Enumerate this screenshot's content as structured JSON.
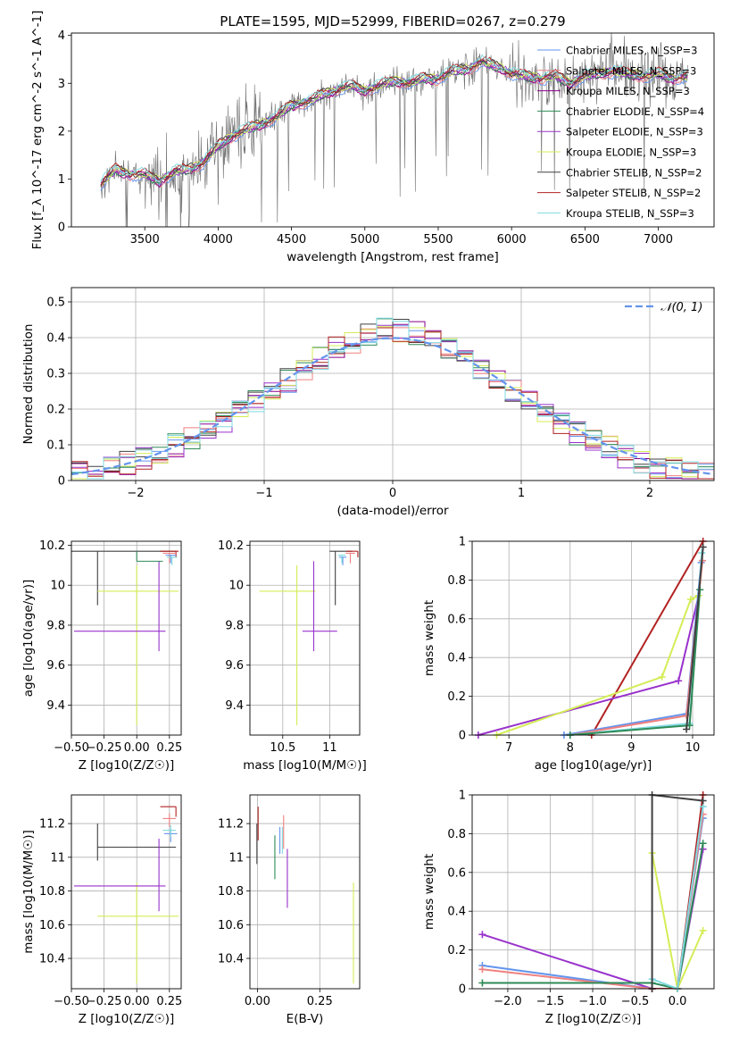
{
  "title": "PLATE=1595, MJD=52999, FIBERID=0267, z=0.279",
  "colors": {
    "chabrier_miles": "#6495ed",
    "salpeter_miles": "#f08080",
    "kroupa_miles": "#8b008b",
    "chabrier_elodie": "#2e8b57",
    "salpeter_elodie": "#9932cc",
    "kroupa_elodie": "#d4ed57",
    "chabrier_stelib": "#404040",
    "salpeter_stelib": "#b22222",
    "kroupa_stelib": "#7fd9e0",
    "data": "#6e6e6e",
    "gaussian": "#6495ed",
    "grid": "#b0b0b0"
  },
  "chart_data": [
    {
      "id": "spectrum",
      "type": "line",
      "title": "PLATE=1595, MJD=52999, FIBERID=0267, z=0.279",
      "xlabel": "wavelength [Angstrom, rest frame]",
      "ylabel": "Flux [f_λ 10^-17 erg cm^-2 s^-1 A^-1]",
      "xlim": [
        3000,
        7380
      ],
      "ylim": [
        0,
        4.05
      ],
      "xticks": [
        3500,
        4000,
        4500,
        5000,
        5500,
        6000,
        6500,
        7000
      ],
      "yticks": [
        0,
        1,
        2,
        3,
        4
      ],
      "grid": false,
      "legend_position": "upper-right",
      "legend": [
        "Chabrier MILES, N_SSP=3",
        "Salpeter MILES, N_SSP=3",
        "Kroupa MILES, N_SSP=3",
        "Chabrier ELODIE, N_SSP=4",
        "Salpeter ELODIE, N_SSP=3",
        "Kroupa ELODIE, N_SSP=3",
        "Chabrier STELIB, N_SSP=2",
        "Salpeter STELIB, N_SSP=2",
        "Kroupa STELIB, N_SSP=3"
      ],
      "continuum_x": [
        3200,
        3300,
        3400,
        3500,
        3600,
        3700,
        3800,
        3900,
        4000,
        4100,
        4200,
        4300,
        4400,
        4500,
        4600,
        4700,
        4800,
        4900,
        5000,
        5100,
        5200,
        5300,
        5400,
        5500,
        5600,
        5700,
        5800,
        5900,
        6000,
        6100,
        6200,
        6300,
        6400,
        6500,
        6600,
        6700,
        6800,
        6900,
        7000,
        7100,
        7200
      ],
      "continuum_y": [
        0.9,
        1.2,
        1.1,
        1.1,
        0.95,
        1.15,
        1.2,
        1.35,
        1.7,
        1.9,
        2.05,
        2.15,
        2.3,
        2.55,
        2.6,
        2.75,
        2.85,
        2.95,
        2.85,
        2.95,
        3.05,
        3.0,
        3.1,
        3.1,
        3.25,
        3.3,
        3.45,
        3.35,
        3.2,
        3.15,
        3.1,
        3.15,
        3.0,
        3.15,
        3.2,
        3.25,
        3.2,
        3.15,
        3.2,
        3.1,
        3.15
      ]
    },
    {
      "id": "residuals",
      "type": "line",
      "xlabel": "(data-model)/error",
      "ylabel": "Normed distribution",
      "xlim": [
        -2.5,
        2.5
      ],
      "ylim": [
        0,
        0.54
      ],
      "xticks": [
        -2,
        -1,
        0,
        1,
        2
      ],
      "yticks": [
        0.0,
        0.1,
        0.2,
        0.3,
        0.4,
        0.5
      ],
      "grid": true,
      "legend_position": "upper-right",
      "legend": [
        "𝒩(0, 1)"
      ],
      "hist_y": [
        0.02,
        0.03,
        0.04,
        0.05,
        0.06,
        0.08,
        0.1,
        0.12,
        0.14,
        0.16,
        0.19,
        0.22,
        0.25,
        0.28,
        0.31,
        0.34,
        0.37,
        0.39,
        0.41,
        0.42,
        0.42,
        0.41,
        0.39,
        0.37,
        0.34,
        0.31,
        0.28,
        0.25,
        0.22,
        0.19,
        0.16,
        0.13,
        0.11,
        0.09,
        0.07,
        0.05,
        0.04,
        0.03,
        0.03,
        0.02
      ]
    },
    {
      "id": "age-vs-z",
      "type": "scatter",
      "xlabel": "Z [log10(Z/Z☉)]",
      "ylabel": "age [log10(age/yr)]",
      "xlim": [
        -0.5,
        0.34
      ],
      "ylim": [
        9.25,
        10.22
      ],
      "xticks": [
        -0.5,
        -0.25,
        0.0,
        0.25
      ],
      "xtick_labels": [
        "−0.50",
        "−0.25",
        "0.00",
        "0.25"
      ],
      "yticks": [
        9.4,
        9.6,
        9.8,
        10.0,
        10.2
      ],
      "grid": true,
      "points": [
        {
          "series": "chabrier_stelib",
          "x": -0.3,
          "y": 10.17,
          "xerr": [
            0.3,
            0.6
          ],
          "yerr": [
            0.27,
            0.0
          ]
        },
        {
          "series": "kroupa_elodie",
          "x": 0.0,
          "y": 9.97,
          "xerr": [
            0.3,
            0.32
          ],
          "yerr": [
            0.67,
            0.13
          ]
        },
        {
          "series": "salpeter_elodie",
          "x": 0.17,
          "y": 9.77,
          "xerr": [
            0.65,
            0.05
          ],
          "yerr": [
            0.1,
            0.35
          ]
        },
        {
          "series": "chabrier_elodie",
          "x": 0.0,
          "y": 10.12,
          "xerr": [
            0.0,
            0.2
          ],
          "yerr": [
            0.0,
            0.05
          ]
        },
        {
          "series": "salpeter_stelib",
          "x": 0.3,
          "y": 10.17,
          "xerr": [
            0.12,
            0.02
          ],
          "yerr": [
            0.03,
            0.0
          ]
        },
        {
          "series": "salpeter_miles",
          "x": 0.25,
          "y": 10.16,
          "xerr": [
            0.05,
            0.05
          ],
          "yerr": [
            0.05,
            0.0
          ]
        },
        {
          "series": "chabrier_miles",
          "x": 0.26,
          "y": 10.15,
          "xerr": [
            0.04,
            0.04
          ],
          "yerr": [
            0.04,
            0.0
          ]
        },
        {
          "series": "kroupa_stelib",
          "x": 0.27,
          "y": 10.14,
          "xerr": [
            0.04,
            0.04
          ],
          "yerr": [
            0.04,
            0.0
          ]
        }
      ]
    },
    {
      "id": "age-vs-mass",
      "type": "scatter",
      "xlabel": "mass [log10(M/M☉)]",
      "xlim": [
        10.15,
        11.32
      ],
      "ylim": [
        9.25,
        10.22
      ],
      "xticks": [
        10.5,
        11.0
      ],
      "yticks": [
        9.4,
        9.6,
        9.8,
        10.0,
        10.2
      ],
      "grid": true,
      "points": [
        {
          "series": "chabrier_stelib",
          "x": 11.06,
          "y": 10.17,
          "xerr": [
            0.06,
            0.18
          ],
          "yerr": [
            0.27,
            0.0
          ]
        },
        {
          "series": "kroupa_elodie",
          "x": 10.65,
          "y": 9.97,
          "xerr": [
            0.4,
            0.2
          ],
          "yerr": [
            0.67,
            0.13
          ]
        },
        {
          "series": "salpeter_elodie",
          "x": 10.83,
          "y": 9.77,
          "xerr": [
            0.12,
            0.25
          ],
          "yerr": [
            0.1,
            0.35
          ]
        },
        {
          "series": "salpeter_stelib",
          "x": 11.3,
          "y": 10.17,
          "xerr": [
            0.12,
            0.0
          ],
          "yerr": [
            0.03,
            0.0
          ]
        },
        {
          "series": "salpeter_miles",
          "x": 11.22,
          "y": 10.16,
          "xerr": [
            0.05,
            0.05
          ],
          "yerr": [
            0.05,
            0.0
          ]
        },
        {
          "series": "chabrier_miles",
          "x": 11.14,
          "y": 10.14,
          "xerr": [
            0.04,
            0.04
          ],
          "yerr": [
            0.04,
            0.0
          ]
        },
        {
          "series": "kroupa_stelib",
          "x": 11.13,
          "y": 10.15,
          "xerr": [
            0.04,
            0.04
          ],
          "yerr": [
            0.04,
            0.0
          ]
        }
      ]
    },
    {
      "id": "weight-vs-age",
      "type": "line",
      "xlabel": "age [log10(age/yr)]",
      "ylabel": "mass weight",
      "xlim": [
        6.4,
        10.35
      ],
      "ylim": [
        0,
        1.0
      ],
      "xticks": [
        7,
        8,
        9,
        10
      ],
      "yticks": [
        0.0,
        0.2,
        0.4,
        0.6,
        0.8,
        1.0
      ],
      "grid": true,
      "series": [
        {
          "key": "salpeter_stelib",
          "x": [
            8.35,
            10.17
          ],
          "y": [
            0.0,
            1.0
          ]
        },
        {
          "key": "salpeter_elodie",
          "x": [
            6.5,
            9.77,
            10.1
          ],
          "y": [
            0.0,
            0.28,
            0.72
          ]
        },
        {
          "key": "kroupa_elodie",
          "x": [
            6.8,
            9.5,
            9.97,
            10.1
          ],
          "y": [
            0.0,
            0.3,
            0.7,
            0.72
          ]
        },
        {
          "key": "chabrier_miles",
          "x": [
            7.9,
            9.9,
            10.14
          ],
          "y": [
            0.0,
            0.11,
            0.89
          ]
        },
        {
          "key": "salpeter_miles",
          "x": [
            8.0,
            9.9,
            10.16
          ],
          "y": [
            0.0,
            0.1,
            0.9
          ]
        },
        {
          "key": "kroupa_stelib",
          "x": [
            8.0,
            9.95,
            10.15
          ],
          "y": [
            0.0,
            0.06,
            0.94
          ]
        },
        {
          "key": "chabrier_elodie",
          "x": [
            8.0,
            9.95,
            10.12
          ],
          "y": [
            0.0,
            0.05,
            0.75
          ]
        },
        {
          "key": "chabrier_stelib",
          "x": [
            9.9,
            10.17
          ],
          "y": [
            0.03,
            0.97
          ]
        }
      ]
    },
    {
      "id": "mass-vs-z",
      "type": "scatter",
      "xlabel": "Z [log10(Z/Z☉)]",
      "ylabel": "mass [log10(M/M☉)]",
      "xlim": [
        -0.5,
        0.34
      ],
      "ylim": [
        10.22,
        11.37
      ],
      "xticks": [
        -0.5,
        -0.25,
        0.0,
        0.25
      ],
      "xtick_labels": [
        "−0.50",
        "−0.25",
        "0.00",
        "0.25"
      ],
      "yticks": [
        10.4,
        10.6,
        10.8,
        11.0,
        11.2
      ],
      "grid": true,
      "points": [
        {
          "series": "chabrier_stelib",
          "x": -0.3,
          "y": 11.06,
          "xerr": [
            0.0,
            0.6
          ],
          "yerr": [
            0.08,
            0.14
          ]
        },
        {
          "series": "kroupa_elodie",
          "x": 0.0,
          "y": 10.65,
          "xerr": [
            0.3,
            0.32
          ],
          "yerr": [
            0.4,
            0.2
          ]
        },
        {
          "series": "salpeter_elodie",
          "x": 0.17,
          "y": 10.83,
          "xerr": [
            0.65,
            0.05
          ],
          "yerr": [
            0.15,
            0.28
          ]
        },
        {
          "series": "salpeter_stelib",
          "x": 0.3,
          "y": 11.3,
          "xerr": [
            0.12,
            0.0
          ],
          "yerr": [
            0.06,
            0.0
          ]
        },
        {
          "series": "salpeter_miles",
          "x": 0.25,
          "y": 11.23,
          "xerr": [
            0.05,
            0.05
          ],
          "yerr": [
            0.05,
            0.03
          ]
        },
        {
          "series": "chabrier_miles",
          "x": 0.26,
          "y": 11.14,
          "xerr": [
            0.05,
            0.05
          ],
          "yerr": [
            0.05,
            0.03
          ]
        },
        {
          "series": "kroupa_stelib",
          "x": 0.26,
          "y": 11.16,
          "xerr": [
            0.06,
            0.04
          ],
          "yerr": [
            0.04,
            0.03
          ]
        }
      ]
    },
    {
      "id": "mass-vs-ebv",
      "type": "scatter",
      "xlabel": "E(B-V)",
      "xlim": [
        -0.03,
        0.41
      ],
      "ylim": [
        10.22,
        11.37
      ],
      "xticks": [
        0.0,
        0.25
      ],
      "xtick_labels": [
        "0.00",
        "0.25"
      ],
      "yticks": [
        10.4,
        10.6,
        10.8,
        11.0,
        11.2
      ],
      "grid": true,
      "points": [
        {
          "series": "chabrier_stelib",
          "x": -0.002,
          "y": 11.1,
          "xerr": [
            0,
            0
          ],
          "yerr": [
            0.14,
            0.1
          ]
        },
        {
          "series": "salpeter_stelib",
          "x": 0.003,
          "y": 11.2,
          "xerr": [
            0,
            0
          ],
          "yerr": [
            0.1,
            0.1
          ]
        },
        {
          "series": "chabrier_elodie",
          "x": 0.07,
          "y": 11.0,
          "xerr": [
            0,
            0
          ],
          "yerr": [
            0.13,
            0.13
          ]
        },
        {
          "series": "chabrier_miles",
          "x": 0.09,
          "y": 11.1,
          "xerr": [
            0,
            0
          ],
          "yerr": [
            0.08,
            0.08
          ]
        },
        {
          "series": "kroupa_stelib",
          "x": 0.1,
          "y": 11.1,
          "xerr": [
            0,
            0
          ],
          "yerr": [
            0.08,
            0.08
          ]
        },
        {
          "series": "salpeter_miles",
          "x": 0.105,
          "y": 11.15,
          "xerr": [
            0,
            0
          ],
          "yerr": [
            0.1,
            0.1
          ]
        },
        {
          "series": "salpeter_elodie",
          "x": 0.12,
          "y": 10.85,
          "xerr": [
            0,
            0
          ],
          "yerr": [
            0.15,
            0.2
          ]
        },
        {
          "series": "kroupa_elodie",
          "x": 0.385,
          "y": 10.55,
          "xerr": [
            0,
            0
          ],
          "yerr": [
            0.3,
            0.3
          ]
        }
      ]
    },
    {
      "id": "weight-vs-z",
      "type": "line",
      "xlabel": "Z [log10(Z/Z☉)]",
      "ylabel": "mass weight",
      "xlim": [
        -2.42,
        0.43
      ],
      "ylim": [
        0,
        1.0
      ],
      "xticks": [
        -2.0,
        -1.5,
        -1.0,
        -0.5,
        0.0
      ],
      "xtick_labels": [
        "−2.0",
        "−1.5",
        "−1.0",
        "−0.5",
        "0.0"
      ],
      "yticks": [
        0.0,
        0.2,
        0.4,
        0.6,
        0.8,
        1.0
      ],
      "grid": true,
      "series": [
        {
          "key": "salpeter_elodie",
          "x": [
            -2.3,
            -0.3,
            0.0,
            0.3
          ],
          "y": [
            0.28,
            0.0,
            0.0,
            0.72
          ]
        },
        {
          "key": "chabrier_miles",
          "x": [
            -2.3,
            -0.3,
            0.0,
            0.3
          ],
          "y": [
            0.12,
            0.0,
            0.0,
            0.88
          ]
        },
        {
          "key": "salpeter_miles",
          "x": [
            -2.3,
            -0.3,
            0.0,
            0.3
          ],
          "y": [
            0.1,
            0.0,
            0.0,
            0.9
          ]
        },
        {
          "key": "chabrier_elodie",
          "x": [
            -2.3,
            -0.3,
            0.0,
            0.3
          ],
          "y": [
            0.03,
            0.03,
            0.0,
            0.75
          ]
        },
        {
          "key": "kroupa_elodie",
          "x": [
            -0.3,
            0.0,
            0.3
          ],
          "y": [
            0.7,
            0.0,
            0.3
          ]
        },
        {
          "key": "salpeter_stelib",
          "x": [
            -0.3,
            0.0,
            0.3
          ],
          "y": [
            0.0,
            0.0,
            1.0
          ]
        },
        {
          "key": "kroupa_stelib",
          "x": [
            -0.3,
            0.0,
            0.3
          ],
          "y": [
            0.05,
            0.0,
            0.94
          ]
        },
        {
          "key": "chabrier_stelib",
          "x": [
            -0.3,
            -0.3,
            0.3
          ],
          "y": [
            0.0,
            1.0,
            0.97
          ]
        }
      ]
    }
  ]
}
